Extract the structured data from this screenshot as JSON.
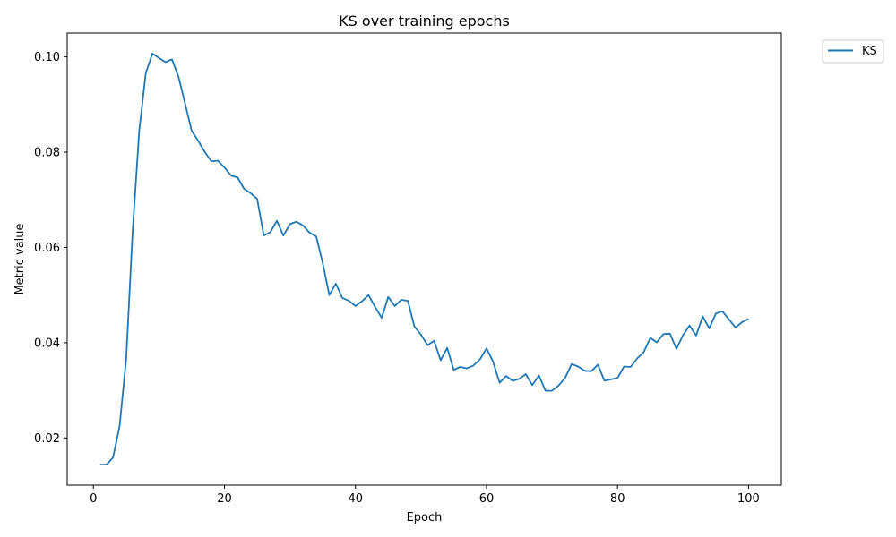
{
  "chart_data": {
    "type": "line",
    "title": "KS over training epochs",
    "xlabel": "Epoch",
    "ylabel": "Metric value",
    "xlim": [
      -4,
      105
    ],
    "ylim": [
      0.0101,
      0.105
    ],
    "xticks": [
      0,
      20,
      40,
      60,
      80,
      100
    ],
    "yticks": [
      0.02,
      0.04,
      0.06,
      0.08,
      0.1
    ],
    "ytick_labels": [
      "0.02",
      "0.04",
      "0.06",
      "0.08",
      "0.10"
    ],
    "grid": false,
    "legend": {
      "placement": "outside-top-right"
    },
    "colors": {
      "KS": "#1f77b4"
    },
    "series": [
      {
        "name": "KS",
        "x": [
          1,
          2,
          3,
          4,
          5,
          6,
          7,
          8,
          9,
          10,
          11,
          12,
          13,
          14,
          15,
          16,
          17,
          18,
          19,
          20,
          21,
          22,
          23,
          24,
          25,
          26,
          27,
          28,
          29,
          30,
          31,
          32,
          33,
          34,
          35,
          36,
          37,
          38,
          39,
          40,
          41,
          42,
          43,
          44,
          45,
          46,
          47,
          48,
          49,
          50,
          51,
          52,
          53,
          54,
          55,
          56,
          57,
          58,
          59,
          60,
          61,
          62,
          63,
          64,
          65,
          66,
          67,
          68,
          69,
          70,
          71,
          72,
          73,
          74,
          75,
          76,
          77,
          78,
          79,
          80,
          81,
          82,
          83,
          84,
          85,
          86,
          87,
          88,
          89,
          90,
          91,
          92,
          93,
          94,
          95,
          96,
          97,
          98,
          99,
          100
        ],
        "values": [
          0.0144,
          0.0144,
          0.0159,
          0.0225,
          0.0365,
          0.0636,
          0.0845,
          0.0966,
          0.1007,
          0.0998,
          0.0989,
          0.0995,
          0.0958,
          0.0902,
          0.0845,
          0.0824,
          0.08,
          0.0781,
          0.0782,
          0.0768,
          0.0751,
          0.0747,
          0.0723,
          0.0714,
          0.0702,
          0.0625,
          0.0632,
          0.0656,
          0.0625,
          0.0649,
          0.0654,
          0.0646,
          0.0631,
          0.0623,
          0.0567,
          0.05,
          0.0524,
          0.0494,
          0.0488,
          0.0477,
          0.0487,
          0.05,
          0.0475,
          0.0452,
          0.0496,
          0.0477,
          0.049,
          0.0488,
          0.0434,
          0.0417,
          0.0395,
          0.0404,
          0.0363,
          0.0389,
          0.0343,
          0.0349,
          0.0346,
          0.0352,
          0.0365,
          0.0388,
          0.036,
          0.0316,
          0.033,
          0.032,
          0.0324,
          0.0334,
          0.0311,
          0.0331,
          0.0299,
          0.0299,
          0.031,
          0.0326,
          0.0355,
          0.035,
          0.0341,
          0.034,
          0.0354,
          0.032,
          0.0323,
          0.0326,
          0.035,
          0.0349,
          0.0367,
          0.038,
          0.041,
          0.0401,
          0.0418,
          0.0419,
          0.0387,
          0.0416,
          0.0436,
          0.0415,
          0.0455,
          0.043,
          0.0461,
          0.0466,
          0.0449,
          0.0432,
          0.0443,
          0.045
        ]
      }
    ]
  }
}
